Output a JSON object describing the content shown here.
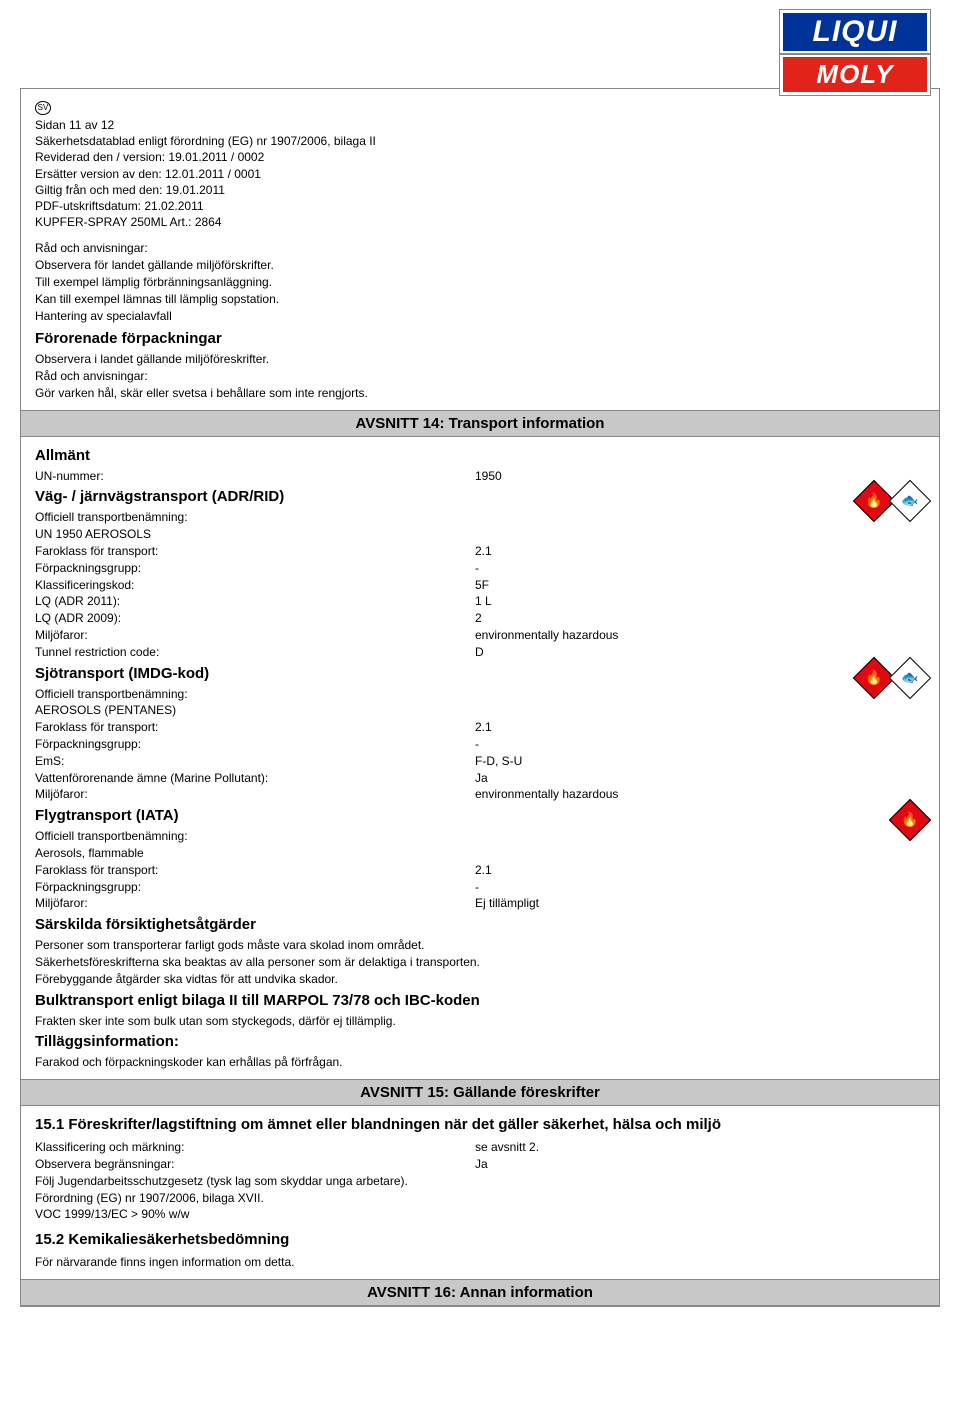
{
  "logo": {
    "top": "LIQUI",
    "bottom": "MOLY"
  },
  "sv_badge": "SV",
  "header": {
    "l1": "Sidan  11 av 12",
    "l2": "Säkerhetsdatablad enligt förordning (EG) nr 1907/2006, bilaga II",
    "l3": "Reviderad den / version: 19.01.2011  / 0002",
    "l4": "Ersätter version av den: 12.01.2011  / 0001",
    "l5": "Giltig från och med den: 19.01.2011",
    "l6": "PDF-utskriftsdatum: 21.02.2011",
    "l7": "KUPFER-SPRAY 250ML Art.: 2864"
  },
  "pre14": {
    "p1": "Råd och anvisningar:",
    "p2": "Observera för landet gällande miljöförskrifter.",
    "p3": "Till exempel lämplig förbränningsanläggning.",
    "p4": "Kan till exempel lämnas till lämplig sopstation.",
    "p5": "Hantering av specialavfall",
    "sub": "Förorenade förpackningar",
    "p6": "Observera i landet gällande miljöföreskrifter.",
    "p7": "Råd och anvisningar:",
    "p8": "Gör varken hål, skär eller svetsa i behållare som inte rengjorts."
  },
  "banner14": "AVSNITT 14: Transport information",
  "s14": {
    "allmant": "Allmänt",
    "un_k": "UN-nummer:",
    "un_v": "1950",
    "road": "Väg- / järnvägstransport (ADR/RID)",
    "off": "Officiell transportbenämning:",
    "un1950": "UN 1950   AEROSOLS",
    "faro_k": "Faroklass för transport:",
    "faro_v": "2.1",
    "forp_k": "Förpackningsgrupp:",
    "forp_v": "-",
    "klass_k": "Klassificeringskod:",
    "klass_v": "5F",
    "lq11_k": "LQ (ADR 2011):",
    "lq11_v": "1 L",
    "lq09_k": "LQ (ADR 2009):",
    "lq09_v": "2",
    "milj_k": "Miljöfaror:",
    "milj_v": "environmentally hazardous",
    "tun_k": "Tunnel restriction code:",
    "tun_v": "D",
    "sea": "Sjötransport (IMDG-kod)",
    "aero_p": "AEROSOLS (PENTANES)",
    "ems_k": "EmS:",
    "ems_v": "F-D, S-U",
    "vatten_k": "Vattenförorenande ämne (Marine Pollutant):",
    "vatten_v": "Ja",
    "air": "Flygtransport (IATA)",
    "aero_f": "Aerosols, flammable",
    "ej": "Ej tillämpligt",
    "sars": "Särskilda försiktighetsåtgärder",
    "sars1": "Personer som transporterar farligt gods måste vara skolad inom området.",
    "sars2": "Säkerhetsföreskrifterna ska beaktas av alla personer som är delaktiga i transporten.",
    "sars3": "Förebyggande åtgärder ska vidtas för att undvika skador.",
    "bulk": "Bulktransport enligt bilaga II till MARPOL 73/78 och IBC-koden",
    "bulk1": "Frakten sker inte som bulk utan som styckegods, därför ej tillämplig.",
    "till": "Tilläggsinformation:",
    "till1": "Farakod och förpackningskoder kan erhållas på förfrågan."
  },
  "banner15": "AVSNITT 15: Gällande föreskrifter",
  "s15": {
    "title": "15.1 Föreskrifter/lagstiftning om ämnet eller blandningen när det gäller säkerhet, hälsa och miljö",
    "klass_k": "Klassificering och märkning:",
    "klass_v": "se avsnitt 2.",
    "obs_k": "Observera begränsningar:",
    "obs_v": "Ja",
    "l1": "Följ Jugendarbeitsschutzgesetz (tysk lag som skyddar unga arbetare).",
    "l2": "Förordning (EG) nr 1907/2006, bilaga XVII.",
    "l3": "VOC 1999/13/EC > 90% w/w",
    "title2": "15.2 Kemikaliesäkerhetsbedömning",
    "l4": "För närvarande finns ingen information om detta."
  },
  "banner16": "AVSNITT 16: Annan information"
}
